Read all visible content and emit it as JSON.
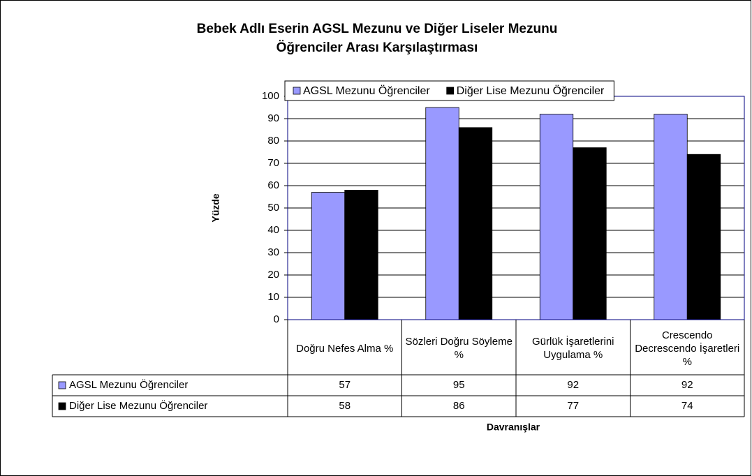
{
  "chart_data": {
    "type": "bar",
    "title": [
      "Bebek Adlı Eserin AGSL Mezunu ve Diğer Liseler Mezunu",
      "Öğrenciler Arası Karşılaştırması"
    ],
    "y_label": "Yüzde",
    "x_label": "Davranışlar",
    "categories": [
      "Doğru Nefes Alma %",
      "Sözleri Doğru Söyleme %",
      "Gürlük İşaretlerini Uygulama %",
      "Crescendo Decrescendo İşaretleri %"
    ],
    "series": [
      {
        "name": "AGSL Mezunu Öğrenciler",
        "color": "#9999ff",
        "values": [
          57,
          95,
          92,
          92
        ]
      },
      {
        "name": "Diğer Lise Mezunu Öğrenciler",
        "color": "#000000",
        "values": [
          58,
          86,
          77,
          74
        ]
      }
    ],
    "ylim": [
      0,
      100
    ],
    "yticks": [
      0,
      10,
      20,
      30,
      40,
      50,
      60,
      70,
      80,
      90,
      100
    ],
    "grid": true,
    "legend": "top",
    "data_table": true
  }
}
